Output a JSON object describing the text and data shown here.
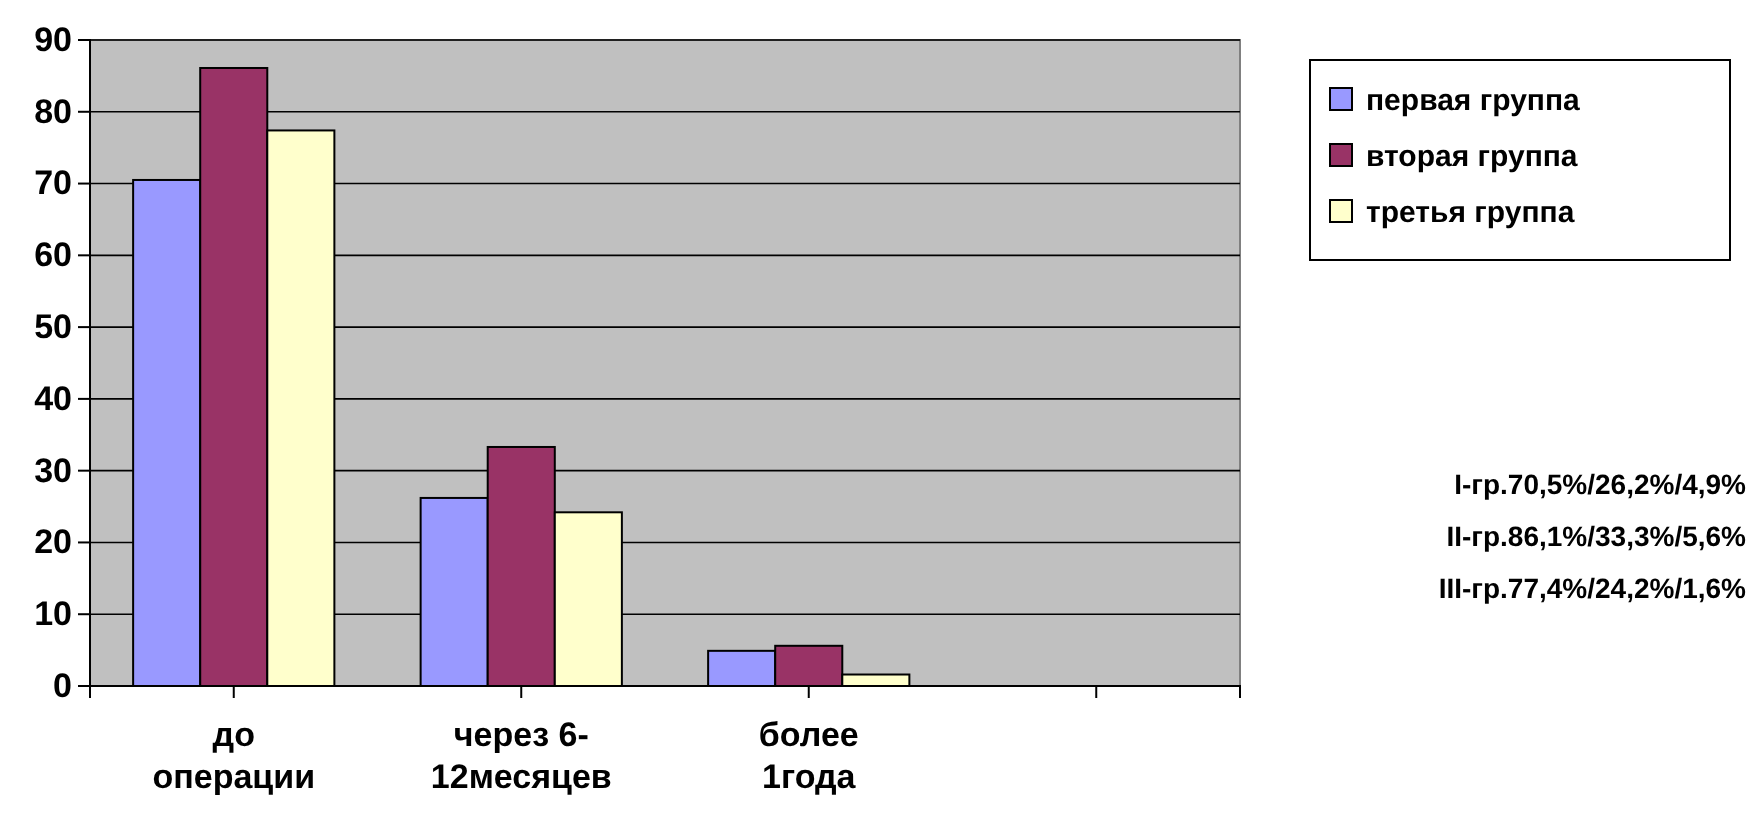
{
  "chart_data": {
    "type": "bar",
    "categories": [
      "до операции",
      "через 6-12месяцев",
      "более 1года",
      null
    ],
    "series": [
      {
        "name": "первая группа",
        "color": "#9999ff",
        "values": [
          70.5,
          26.2,
          4.9,
          null
        ]
      },
      {
        "name": "вторая группа",
        "color": "#993366",
        "values": [
          86.1,
          33.3,
          5.6,
          null
        ]
      },
      {
        "name": "третья группа",
        "color": "#ffffcc",
        "values": [
          77.4,
          24.2,
          1.6,
          null
        ]
      }
    ],
    "ylim": [
      0,
      90
    ],
    "yticks": [
      0,
      10,
      20,
      30,
      40,
      50,
      60,
      70,
      80,
      90
    ],
    "grid": "y",
    "legend": "right",
    "annotations": [
      "I-гр.70,5%/26,2%/4,9%",
      "II-гр.86,1%/33,3%/5,6%",
      "III-гр.77,4%/24,2%/1,6%"
    ]
  }
}
